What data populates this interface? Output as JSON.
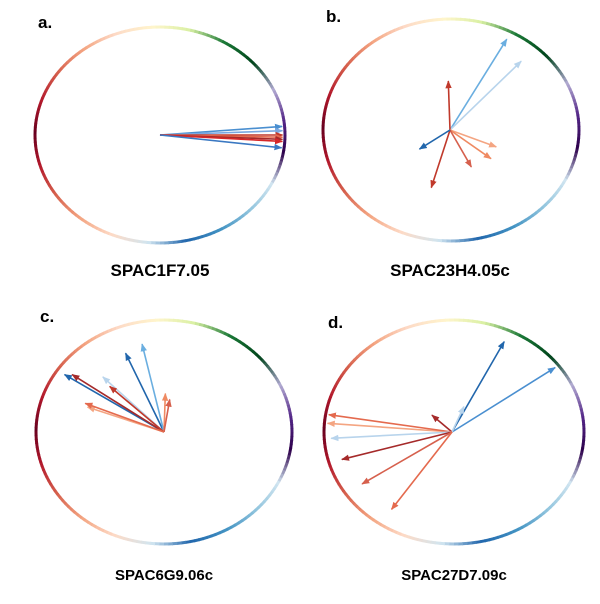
{
  "panels": [
    {
      "letter": "a.",
      "gene": "SPAC1F7.05",
      "arrows": [
        {
          "angle": 4,
          "length": 1.0,
          "color": "#4a8fd0"
        },
        {
          "angle": 2,
          "length": 1.0,
          "color": "#7aa8e0"
        },
        {
          "angle": 0,
          "length": 1.0,
          "color": "#c0392b"
        },
        {
          "angle": -1,
          "length": 1.0,
          "color": "#e46a4e"
        },
        {
          "angle": -2,
          "length": 1.0,
          "color": "#a52a2a"
        },
        {
          "angle": -3,
          "length": 1.0,
          "color": "#d62728"
        },
        {
          "angle": -6,
          "length": 1.0,
          "color": "#3a78c2"
        }
      ]
    },
    {
      "letter": "b.",
      "gene": "SPAC23H4.05c",
      "arrows": [
        {
          "angle": 58,
          "length": 0.95,
          "color": "#6aaee0"
        },
        {
          "angle": 44,
          "length": 0.85,
          "color": "#b8d4ec"
        },
        {
          "angle": 92,
          "length": 0.45,
          "color": "#c0392b"
        },
        {
          "angle": -20,
          "length": 0.4,
          "color": "#f4a582"
        },
        {
          "angle": -35,
          "length": 0.42,
          "color": "#ef8a62"
        },
        {
          "angle": -60,
          "length": 0.38,
          "color": "#d6604d"
        },
        {
          "angle": -108,
          "length": 0.55,
          "color": "#c0392b"
        },
        {
          "angle": -148,
          "length": 0.3,
          "color": "#2166ac"
        }
      ]
    },
    {
      "letter": "c.",
      "gene": "SPAC6G9.06c",
      "arrows": [
        {
          "angle": 116,
          "length": 0.78,
          "color": "#2166ac"
        },
        {
          "angle": 104,
          "length": 0.82,
          "color": "#6aaee0"
        },
        {
          "angle": 150,
          "length": 0.95,
          "color": "#2166ac"
        },
        {
          "angle": 148,
          "length": 0.9,
          "color": "#a52a2a"
        },
        {
          "angle": 138,
          "length": 0.7,
          "color": "#b8d4ec"
        },
        {
          "angle": 140,
          "length": 0.6,
          "color": "#c0392b"
        },
        {
          "angle": 162,
          "length": 0.65,
          "color": "#f4a582"
        },
        {
          "angle": 160,
          "length": 0.68,
          "color": "#e46a4e"
        },
        {
          "angle": 88,
          "length": 0.35,
          "color": "#ef8a62"
        },
        {
          "angle": 80,
          "length": 0.3,
          "color": "#d6604d"
        }
      ]
    },
    {
      "letter": "d.",
      "gene": "SPAC27D7.09c",
      "arrows": [
        {
          "angle": 60,
          "length": 0.92,
          "color": "#2166ac"
        },
        {
          "angle": 32,
          "length": 1.0,
          "color": "#4a8fd0"
        },
        {
          "angle": 140,
          "length": 0.22,
          "color": "#a52a2a"
        },
        {
          "angle": 65,
          "length": 0.25,
          "color": "#b8d4ec"
        },
        {
          "angle": 176,
          "length": 0.98,
          "color": "#f4a582"
        },
        {
          "angle": 172,
          "length": 0.98,
          "color": "#e46a4e"
        },
        {
          "angle": 183,
          "length": 0.95,
          "color": "#b8d4ec"
        },
        {
          "angle": 194,
          "length": 0.9,
          "color": "#a52a2a"
        },
        {
          "angle": 210,
          "length": 0.85,
          "color": "#d6604d"
        },
        {
          "angle": 232,
          "length": 0.85,
          "color": "#e46a4e"
        }
      ]
    }
  ],
  "ring_colors": [
    "#67001f",
    "#b2182b",
    "#d6604d",
    "#f4a582",
    "#fddbc7",
    "#fff5cc",
    "#d9f0a3",
    "#1b7837",
    "#00441b",
    "#b2abd2",
    "#542788",
    "#2d004b",
    "#d1e5f0",
    "#92c5de",
    "#4393c3",
    "#2166ac",
    "#d1e5f0",
    "#fddbc7",
    "#f4a582",
    "#d6604d",
    "#b2182b",
    "#67001f"
  ]
}
